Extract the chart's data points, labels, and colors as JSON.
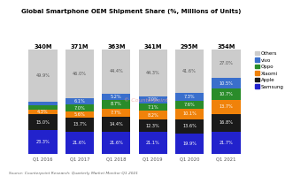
{
  "title": "Global Smartphone OEM Shipment Share (%, Millions of Units)",
  "categories": [
    "Q1 2016",
    "Q1 2017",
    "Q1 2018",
    "Q1 2019",
    "Q1 2020",
    "Q1 2021"
  ],
  "volumes": [
    "340M",
    "371M",
    "363M",
    "341M",
    "295M",
    "354M"
  ],
  "series": {
    "Samsung": [
      23.3,
      21.6,
      21.6,
      21.1,
      19.9,
      21.7
    ],
    "Apple": [
      15.0,
      13.7,
      14.4,
      12.3,
      13.6,
      16.8
    ],
    "Xiaomi": [
      4.3,
      5.6,
      7.7,
      8.2,
      10.1,
      13.7
    ],
    "Oppo": [
      3.9,
      7.0,
      8.7,
      7.1,
      7.6,
      10.7
    ],
    "vivo": [
      3.7,
      6.1,
      5.2,
      7.0,
      7.3,
      10.5
    ],
    "Others": [
      49.9,
      46.0,
      44.4,
      44.3,
      41.6,
      27.0
    ]
  },
  "colors": {
    "Samsung": "#2222cc",
    "Apple": "#1a1a1a",
    "Xiaomi": "#f0820a",
    "Oppo": "#2a8c2a",
    "vivo": "#3a6fcc",
    "Others": "#cccccc"
  },
  "text_colors": {
    "Samsung": "white",
    "Apple": "white",
    "Xiaomi": "white",
    "Oppo": "white",
    "vivo": "white",
    "Others": "#555555"
  },
  "source": "Source: Counterpoint Research: Quarterly Market Monitor Q1 2021",
  "background_color": "#ffffff",
  "plot_bg": "#f5f5f5",
  "col_bg": "#e8e8e8"
}
